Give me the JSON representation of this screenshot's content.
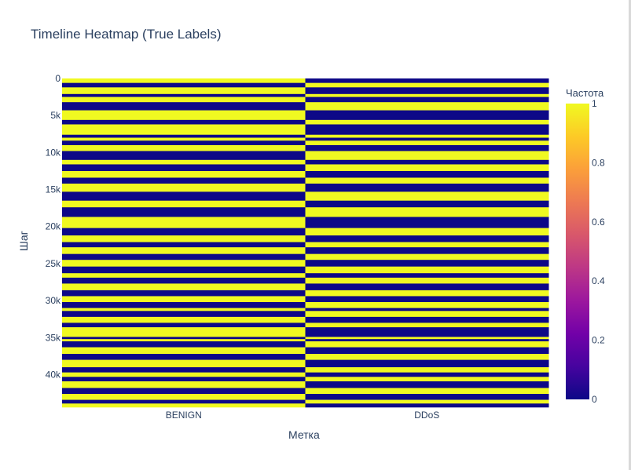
{
  "chart_data": {
    "type": "heatmap",
    "title": "Timeline Heatmap (True Labels)",
    "xlabel": "Метка",
    "ylabel": "Шаг",
    "x_categories": [
      "BENIGN",
      "DDoS"
    ],
    "y_range": [
      0,
      44400
    ],
    "y_ticks": [
      {
        "value": 0,
        "label": "0"
      },
      {
        "value": 5000,
        "label": "5k"
      },
      {
        "value": 10000,
        "label": "10k"
      },
      {
        "value": 15000,
        "label": "15k"
      },
      {
        "value": 20000,
        "label": "20k"
      },
      {
        "value": 25000,
        "label": "25k"
      },
      {
        "value": 30000,
        "label": "30k"
      },
      {
        "value": 35000,
        "label": "35k"
      },
      {
        "value": 40000,
        "label": "40k"
      }
    ],
    "colorbar": {
      "title": "Частота",
      "range": [
        0,
        1
      ],
      "ticks": [
        "0",
        "0.2",
        "0.4",
        "0.6",
        "0.8",
        "1"
      ],
      "colorscale": [
        "#0d0887",
        "#46039f",
        "#7201a8",
        "#9c179e",
        "#bd3786",
        "#d8576b",
        "#ed7953",
        "#fb9f3a",
        "#fdca26",
        "#f0f921"
      ]
    },
    "benign_segments": [
      [
        0,
        600
      ],
      [
        1200,
        2100
      ],
      [
        2500,
        3200
      ],
      [
        4300,
        5600
      ],
      [
        6200,
        7600
      ],
      [
        8000,
        8400
      ],
      [
        9000,
        9800
      ],
      [
        11000,
        11600
      ],
      [
        12500,
        13400
      ],
      [
        14200,
        15300
      ],
      [
        16500,
        17400
      ],
      [
        18700,
        20200
      ],
      [
        21200,
        22100
      ],
      [
        22800,
        23700
      ],
      [
        24500,
        25400
      ],
      [
        26300,
        26900
      ],
      [
        27700,
        28600
      ],
      [
        29400,
        30200
      ],
      [
        31000,
        31400
      ],
      [
        32200,
        33000
      ],
      [
        33600,
        34900
      ],
      [
        35200,
        35500
      ],
      [
        36300,
        37200
      ],
      [
        38000,
        39000
      ],
      [
        39700,
        40300
      ],
      [
        40900,
        41800
      ],
      [
        42600,
        43400
      ],
      [
        43900,
        44400
      ]
    ]
  }
}
